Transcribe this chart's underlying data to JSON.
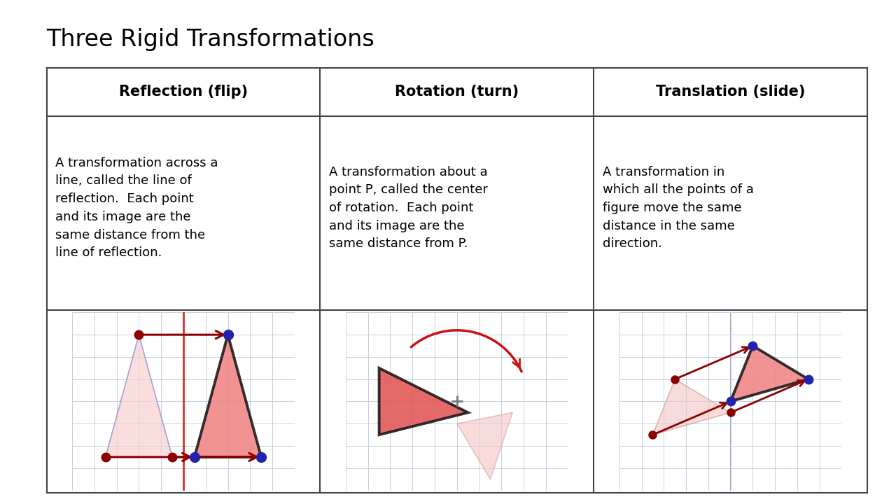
{
  "title": "Three Rigid Transformations",
  "title_fontsize": 24,
  "col_headers": [
    "Reflection (flip)",
    "Rotation (turn)",
    "Translation (slide)"
  ],
  "col_header_fontsize": 15,
  "descriptions": [
    "A transformation across a\nline, called the line of\nreflection.  Each point\nand its image are the\nsame distance from the\nline of reflection.",
    "A transformation about a\npoint P, called the center\nof rotation.  Each point\nand its image are the\nsame distance from P.",
    "A transformation in\nwhich all the points of a\nfigure move the same\ndistance in the same\ndirection."
  ],
  "desc_fontsize": 13,
  "background_color": "#ffffff",
  "table_border_color": "#444444",
  "grid_color": "#c5cfe0",
  "dark_red": "#8B0000",
  "arrow_red": "#cc1111",
  "pink_fill": "#f08080",
  "light_pink_fill": "#f5c8c8",
  "purple_dot": "#2222aa",
  "purple_edge": "#7070bb"
}
